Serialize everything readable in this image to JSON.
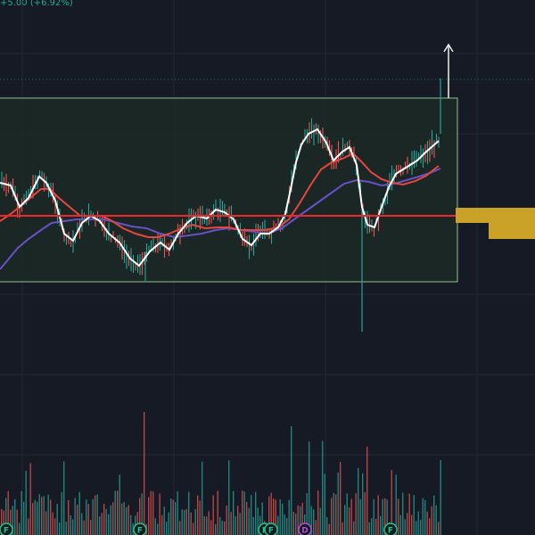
{
  "header": {
    "price_change": "+5.00 (+6.92%)"
  },
  "colors": {
    "background": "#161a25",
    "grid": "#232837",
    "range_box_fill": "#1c2a26",
    "range_box_border": "#8bc48f",
    "level_line": "#f0262b",
    "ma_white": "#ffffff",
    "ma_red": "#e6463f",
    "ma_purple": "#6750c8",
    "candle_up": "#26a69a",
    "candle_down": "#ef5350",
    "zone": "#c9a227",
    "badge_green": "#26c281",
    "badge_purple": "#b24fd6",
    "arrow": "#ffffff"
  },
  "event_badges": [
    {
      "letter": "F",
      "kind": "financials"
    },
    {
      "letter": "F",
      "kind": "financials"
    },
    {
      "letter": "F",
      "kind": "financials"
    },
    {
      "letter": "F",
      "kind": "financials"
    },
    {
      "letter": "D",
      "kind": "dividend"
    },
    {
      "letter": "F",
      "kind": "financials"
    }
  ]
}
